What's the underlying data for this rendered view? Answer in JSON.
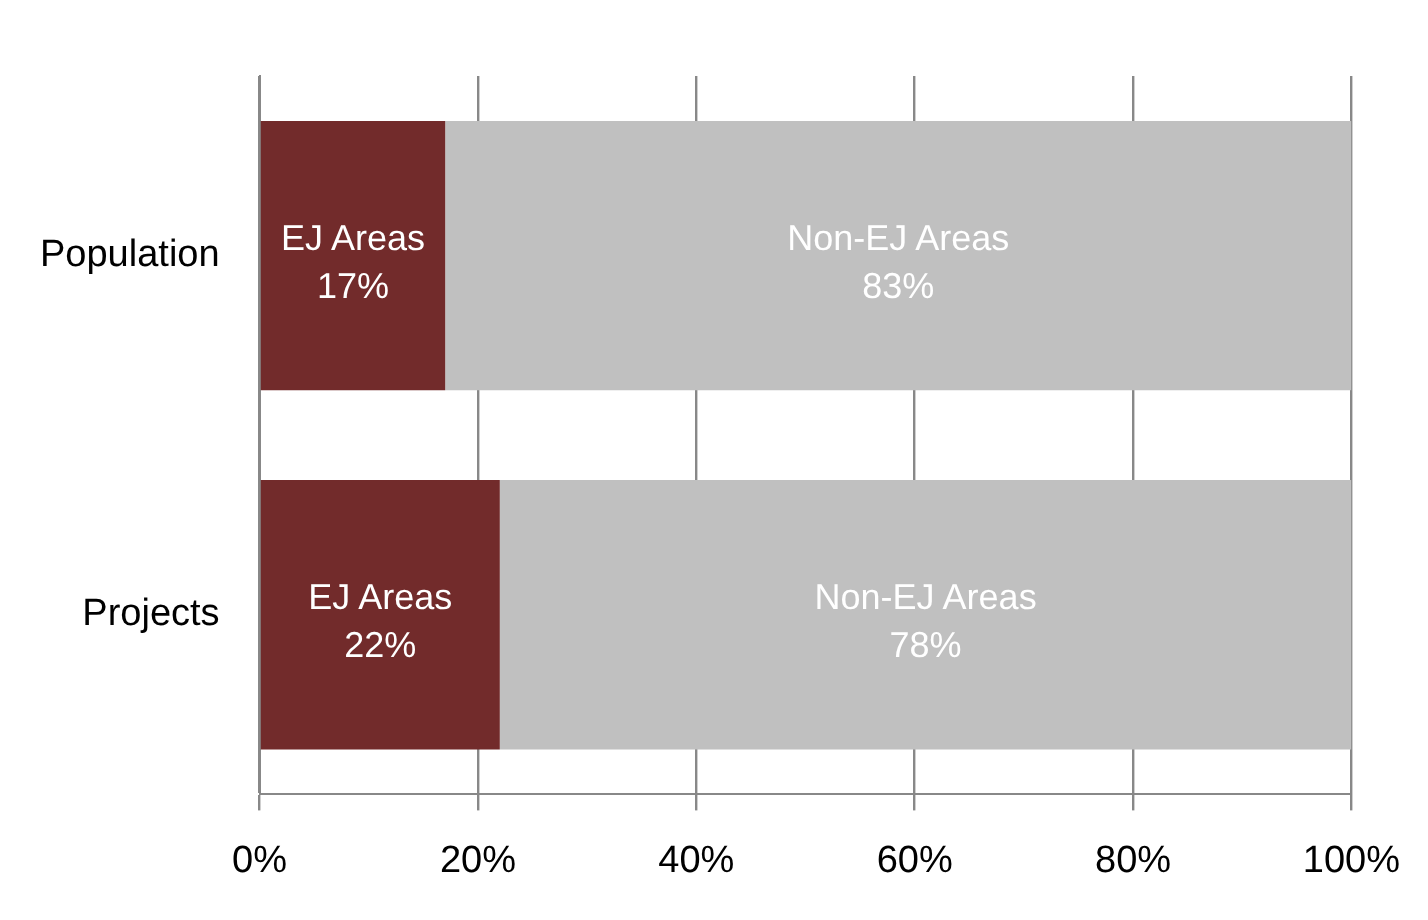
{
  "chart_data": {
    "type": "bar",
    "orientation": "horizontal",
    "stacked": true,
    "categories": [
      "Population",
      "Projects"
    ],
    "series": [
      {
        "name": "EJ Areas",
        "color": "#722b2b",
        "values": [
          17,
          22
        ],
        "value_labels": [
          "17%",
          "22%"
        ]
      },
      {
        "name": "Non-EJ Areas",
        "color": "#c0c0c0",
        "values": [
          83,
          78
        ],
        "value_labels": [
          "83%",
          "78%"
        ]
      }
    ],
    "xlim": [
      0,
      100
    ],
    "xticks": [
      {
        "value": 0,
        "label": "0%"
      },
      {
        "value": 20,
        "label": "20%"
      },
      {
        "value": 40,
        "label": "40%"
      },
      {
        "value": 60,
        "label": "60%"
      },
      {
        "value": 80,
        "label": "80%"
      },
      {
        "value": 100,
        "label": "100%"
      }
    ],
    "grid": "x",
    "legend": false
  }
}
